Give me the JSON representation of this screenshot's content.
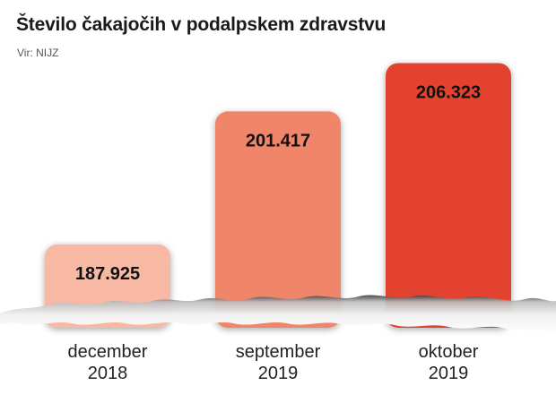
{
  "title": "Število čakajočih v podalpskem zdravstvu",
  "source": "Vir: NIJZ",
  "chart_data": {
    "type": "bar",
    "categories": [
      [
        "december",
        "2018"
      ],
      [
        "september",
        "2019"
      ],
      [
        "oktober",
        "2019"
      ]
    ],
    "values": [
      187925,
      201417,
      206323
    ],
    "value_labels": [
      "187.925",
      "201.417",
      "206.323"
    ],
    "colors": [
      "#f7b9a3",
      "#f0856a",
      "#e3432d"
    ],
    "ylim": [
      180000,
      208000
    ],
    "grid": false,
    "legend": "none"
  }
}
